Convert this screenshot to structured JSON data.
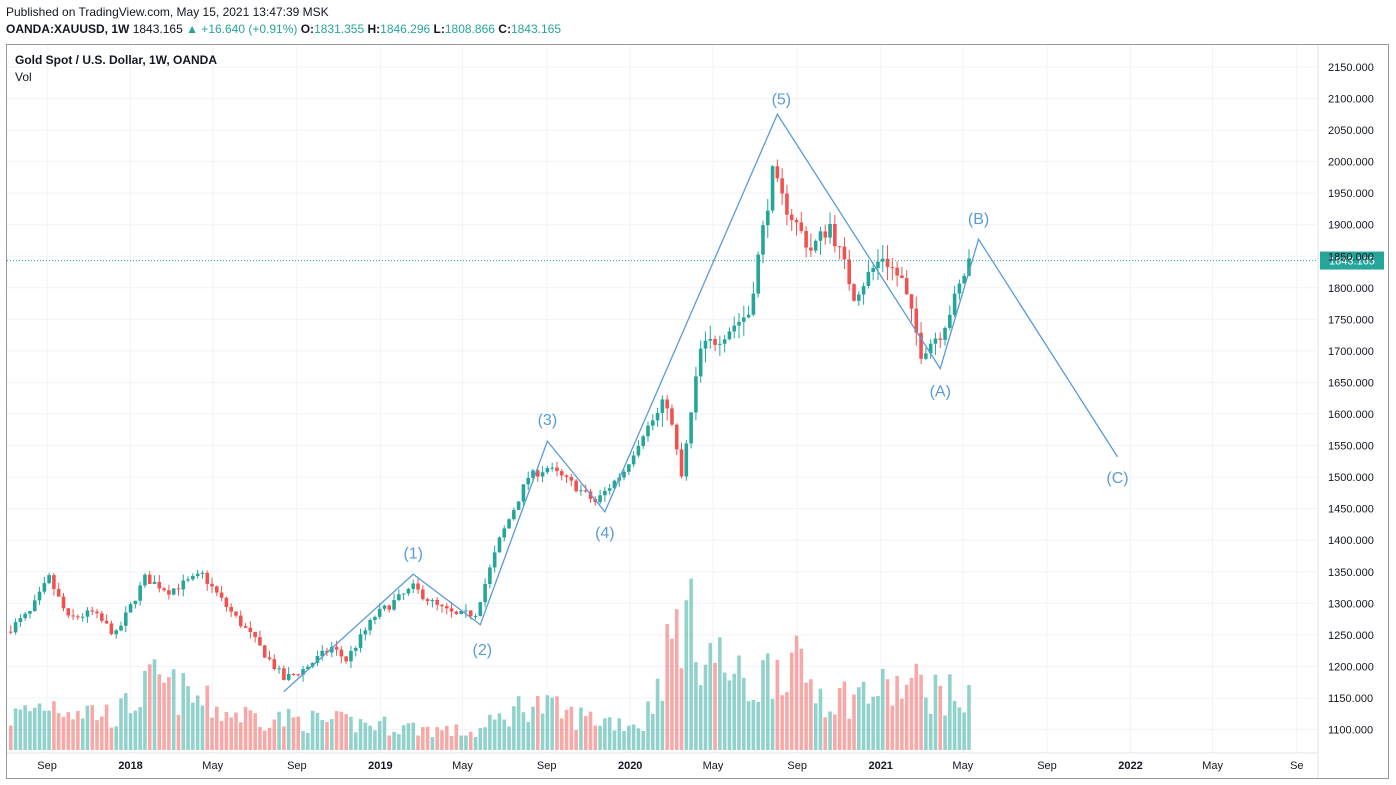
{
  "header": {
    "published": "Published on TradingView.com, May 15, 2021 13:47:39 MSK",
    "symbol": "OANDA:XAUUSD, 1W",
    "last": "1843.165",
    "change": "▲ +16.640 (+0.91%)",
    "o_label": "O:",
    "o_value": "1831.355",
    "h_label": "H:",
    "h_value": "1846.296",
    "l_label": "L:",
    "l_value": "1808.866",
    "c_label": "C:",
    "c_value": "1843.165"
  },
  "legend": {
    "title": "Gold Spot / U.S. Dollar, 1W, OANDA",
    "vol": "Vol"
  },
  "colors": {
    "up": "#26a69a",
    "down": "#ef5350",
    "wave": "#5b9bd5",
    "price_line": "#26a69a"
  },
  "chart_data": {
    "type": "candlestick",
    "title": "Gold Spot / U.S. Dollar, 1W, OANDA",
    "ylim": [
      1075,
      2175
    ],
    "y_ticks": [
      "2150.000",
      "2100.000",
      "2050.000",
      "2000.000",
      "1950.000",
      "1900.000",
      "1850.000",
      "1800.000",
      "1750.000",
      "1700.000",
      "1650.000",
      "1600.000",
      "1550.000",
      "1500.000",
      "1450.000",
      "1400.000",
      "1350.000",
      "1300.000",
      "1250.000",
      "1200.000",
      "1150.000",
      "1100.000"
    ],
    "x_ticks": [
      {
        "label": "Sep",
        "date": "2017-09-01"
      },
      {
        "label": "2018",
        "date": "2018-01-01"
      },
      {
        "label": "May",
        "date": "2018-05-01"
      },
      {
        "label": "Sep",
        "date": "2018-09-01"
      },
      {
        "label": "2019",
        "date": "2019-01-01"
      },
      {
        "label": "May",
        "date": "2019-05-01"
      },
      {
        "label": "Sep",
        "date": "2019-09-01"
      },
      {
        "label": "2020",
        "date": "2020-01-01"
      },
      {
        "label": "May",
        "date": "2020-05-01"
      },
      {
        "label": "Sep",
        "date": "2020-09-01"
      },
      {
        "label": "2021",
        "date": "2021-01-01"
      },
      {
        "label": "May",
        "date": "2021-05-01"
      },
      {
        "label": "Sep",
        "date": "2021-09-01"
      },
      {
        "label": "2022",
        "date": "2022-01-01"
      },
      {
        "label": "May",
        "date": "2022-05-01"
      },
      {
        "label": "Se",
        "date": "2022-09-01"
      }
    ],
    "last_price": "1843.165",
    "close_anchors": [
      [
        "2017-07-03",
        1255
      ],
      [
        "2017-08-07",
        1285
      ],
      [
        "2017-09-04",
        1340
      ],
      [
        "2017-10-02",
        1275
      ],
      [
        "2017-11-06",
        1285
      ],
      [
        "2017-12-11",
        1250
      ],
      [
        "2018-01-22",
        1340
      ],
      [
        "2018-02-26",
        1320
      ],
      [
        "2018-04-16",
        1345
      ],
      [
        "2018-05-21",
        1295
      ],
      [
        "2018-06-25",
        1250
      ],
      [
        "2018-08-13",
        1180
      ],
      [
        "2018-09-10",
        1195
      ],
      [
        "2018-10-22",
        1230
      ],
      [
        "2018-11-12",
        1210
      ],
      [
        "2018-12-24",
        1280
      ],
      [
        "2019-02-18",
        1325
      ],
      [
        "2019-03-25",
        1295
      ],
      [
        "2019-04-22",
        1280
      ],
      [
        "2019-05-20",
        1285
      ],
      [
        "2019-06-24",
        1400
      ],
      [
        "2019-08-05",
        1500
      ],
      [
        "2019-09-02",
        1515
      ],
      [
        "2019-10-07",
        1490
      ],
      [
        "2019-11-11",
        1460
      ],
      [
        "2019-12-23",
        1510
      ],
      [
        "2020-01-20",
        1570
      ],
      [
        "2020-02-24",
        1620
      ],
      [
        "2020-03-16",
        1500
      ],
      [
        "2020-04-13",
        1700
      ],
      [
        "2020-05-18",
        1730
      ],
      [
        "2020-06-22",
        1760
      ],
      [
        "2020-07-27",
        1980
      ],
      [
        "2020-08-10",
        1940
      ],
      [
        "2020-09-21",
        1860
      ],
      [
        "2020-10-19",
        1900
      ],
      [
        "2020-11-23",
        1790
      ],
      [
        "2021-01-04",
        1850
      ],
      [
        "2021-02-01",
        1810
      ],
      [
        "2021-03-01",
        1700
      ],
      [
        "2021-03-29",
        1730
      ],
      [
        "2021-04-19",
        1780
      ],
      [
        "2021-05-10",
        1843
      ]
    ],
    "volume_anchors": [
      [
        "2017-07-03",
        0.18
      ],
      [
        "2017-09-04",
        0.28
      ],
      [
        "2017-12-11",
        0.2
      ],
      [
        "2018-02-05",
        0.4
      ],
      [
        "2018-05-21",
        0.22
      ],
      [
        "2018-08-13",
        0.18
      ],
      [
        "2018-12-24",
        0.15
      ],
      [
        "2019-05-20",
        0.1
      ],
      [
        "2019-08-05",
        0.28
      ],
      [
        "2019-10-07",
        0.2
      ],
      [
        "2020-01-20",
        0.15
      ],
      [
        "2020-03-16",
        0.8
      ],
      [
        "2020-04-20",
        0.6
      ],
      [
        "2020-06-22",
        0.35
      ],
      [
        "2020-08-10",
        0.55
      ],
      [
        "2020-10-19",
        0.3
      ],
      [
        "2021-01-04",
        0.35
      ],
      [
        "2021-03-01",
        0.38
      ],
      [
        "2021-05-10",
        0.28
      ]
    ],
    "wave_points": [
      {
        "label": "",
        "date": "2018-08-13",
        "price": 1160
      },
      {
        "label": "(1)",
        "date": "2019-02-18",
        "price": 1346
      },
      {
        "label": "(2)",
        "date": "2019-05-27",
        "price": 1266
      },
      {
        "label": "(3)",
        "date": "2019-09-02",
        "price": 1557
      },
      {
        "label": "(4)",
        "date": "2019-11-25",
        "price": 1445
      },
      {
        "label": "(5)",
        "date": "2020-08-03",
        "price": 2075
      },
      {
        "label": "(A)",
        "date": "2021-03-29",
        "price": 1672
      },
      {
        "label": "(B)",
        "date": "2021-05-24",
        "price": 1877
      },
      {
        "label": "(C)",
        "date": "2021-12-13",
        "price": 1532
      }
    ],
    "wave_label_offsets": [
      [
        0,
        0
      ],
      [
        0,
        -16
      ],
      [
        2,
        30
      ],
      [
        0,
        -16
      ],
      [
        0,
        26
      ],
      [
        4,
        -10
      ],
      [
        0,
        28
      ],
      [
        0,
        -15
      ],
      [
        0,
        26
      ]
    ]
  }
}
